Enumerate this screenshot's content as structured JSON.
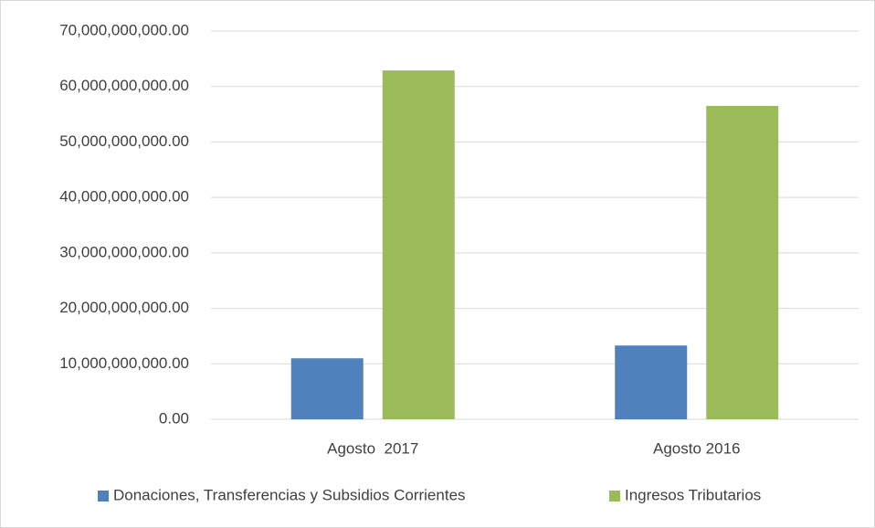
{
  "chart_data": {
    "type": "bar",
    "categories": [
      "Agosto  2017",
      "Agosto 2016"
    ],
    "series": [
      {
        "name": "Donaciones, Transferencias y Subsidios Corrientes",
        "color": "#4f81bd",
        "values": [
          11000000000,
          13300000000
        ]
      },
      {
        "name": "Ingresos Tributarios",
        "color": "#9bbb59",
        "values": [
          62900000000,
          56500000000
        ]
      }
    ],
    "ylim": [
      0,
      70000000000
    ],
    "yticks": [
      {
        "value": 0,
        "label": "0.00"
      },
      {
        "value": 10000000000,
        "label": "10,000,000,000.00"
      },
      {
        "value": 20000000000,
        "label": "20,000,000,000.00"
      },
      {
        "value": 30000000000,
        "label": "30,000,000,000.00"
      },
      {
        "value": 40000000000,
        "label": "40,000,000,000.00"
      },
      {
        "value": 50000000000,
        "label": "50,000,000,000.00"
      },
      {
        "value": 60000000000,
        "label": "60,000,000,000.00"
      },
      {
        "value": 70000000000,
        "label": "70,000,000,000.00"
      }
    ],
    "grid": true,
    "legend": "bottom"
  }
}
